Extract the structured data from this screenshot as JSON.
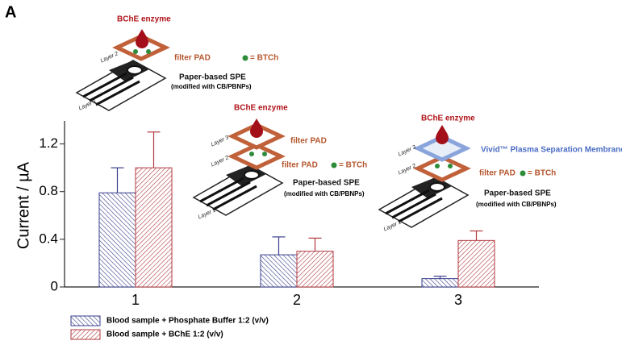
{
  "panel_label": "A",
  "chart_data": {
    "type": "bar",
    "y_label": "Current / µA",
    "categories": [
      "1",
      "2",
      "3"
    ],
    "series": [
      {
        "name": "Blood sample + Phosphate Buffer 1:2 (v/v)",
        "color": "#3a3f8c",
        "values": [
          0.79,
          0.27,
          0.07
        ],
        "errors": [
          0.21,
          0.15,
          0.02
        ]
      },
      {
        "name": "Blood sample + BChE 1:2 (v/v)",
        "color": "#b23a3f",
        "values": [
          1.0,
          0.3,
          0.39
        ],
        "errors": [
          0.3,
          0.11,
          0.08
        ]
      }
    ],
    "ylim": [
      0,
      1.4
    ],
    "yticks": [
      0,
      0.4,
      0.8,
      1.2
    ]
  },
  "insets": [
    {
      "enzyme": "BChE enzyme",
      "layer_top": "Layer 2",
      "filter": "filter PAD",
      "reagent": "= BTCh",
      "electrode": "Paper-based SPE",
      "modification": "(modified with CB/PBNPs)",
      "layer_bottom": "Layer 1"
    },
    {
      "enzyme": "BChE enzyme",
      "layer_top": "Layer 3",
      "filter_top": "filter PAD",
      "layer_mid": "Layer 2",
      "filter": "filter PAD",
      "reagent": "= BTCh",
      "electrode": "Paper-based SPE",
      "modification": "(modified with CB/PBNPs)",
      "layer_bottom": "Layer 1"
    },
    {
      "enzyme": "BChE enzyme",
      "layer_top": "Layer 3",
      "membrane": "Vivid™ Plasma Separation Membrane",
      "layer_mid": "Layer 2",
      "filter": "filter PAD",
      "reagent": "= BTCh",
      "electrode": "Paper-based SPE",
      "modification": "(modified with CB/PBNPs)",
      "layer_bottom": "Layer 1"
    }
  ]
}
